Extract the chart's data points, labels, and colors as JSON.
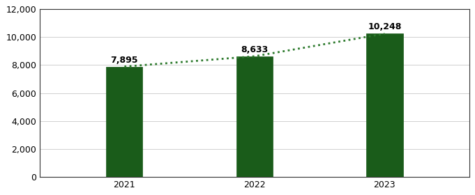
{
  "categories": [
    "2021",
    "2022",
    "2023"
  ],
  "values": [
    7895,
    8633,
    10248
  ],
  "bar_color": "#1a5c1a",
  "bar_edge_color": "#1a5c1a",
  "line_color": "#2d7a2d",
  "line_style": "dotted",
  "line_width": 2.0,
  "labels": [
    "7,895",
    "8,633",
    "10,248"
  ],
  "ylim": [
    0,
    12000
  ],
  "yticks": [
    0,
    2000,
    4000,
    6000,
    8000,
    10000,
    12000
  ],
  "background_color": "#ffffff",
  "grid_color": "#d0d0d0",
  "label_fontsize": 9,
  "tick_fontsize": 9,
  "bar_width": 0.28,
  "border_color": "#333333"
}
